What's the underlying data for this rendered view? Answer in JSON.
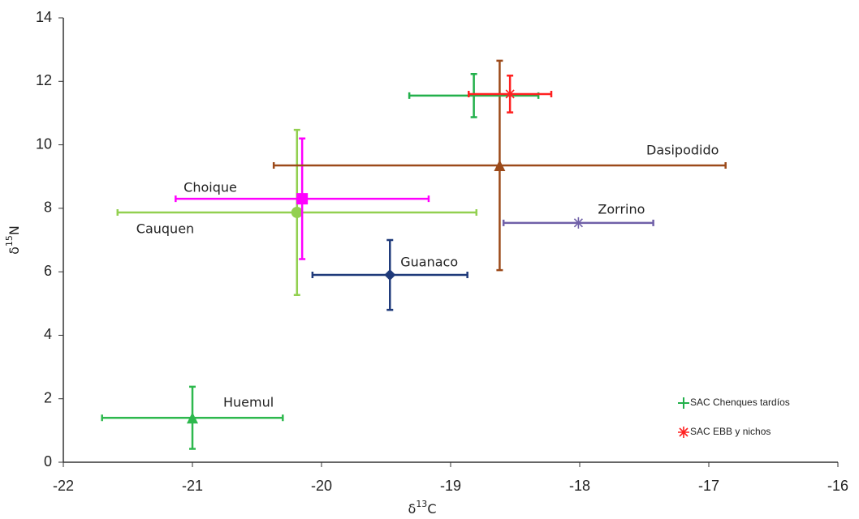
{
  "chart_data": {
    "type": "scatter",
    "x_label": {
      "symbol": "δ",
      "sup": "13",
      "element": "C"
    },
    "y_label": {
      "symbol": "δ",
      "sup": "15",
      "element": "N"
    },
    "xlim": [
      -22,
      -16
    ],
    "xticks": [
      -22,
      -21,
      -20,
      -19,
      -18,
      -17,
      -16
    ],
    "ylim": [
      0,
      14
    ],
    "yticks": [
      0,
      2,
      4,
      6,
      8,
      10,
      12,
      14
    ],
    "series": [
      {
        "name": "Huemul",
        "legend": false,
        "marker": "triangle",
        "color": "#2db84d",
        "x": -21.0,
        "y": 1.4,
        "xerr": 0.7,
        "yerr": 0.98
      },
      {
        "name": "Cauquen",
        "legend": false,
        "marker": "circle",
        "color": "#92d050",
        "x": -20.19,
        "y": 7.87,
        "xerr": 1.39,
        "yerr": 2.6
      },
      {
        "name": "Choique",
        "legend": false,
        "marker": "square",
        "color": "#ff00ff",
        "x": -20.15,
        "y": 8.3,
        "xerr": 0.98,
        "yerr": 1.9
      },
      {
        "name": "Guanaco",
        "legend": false,
        "marker": "diamond",
        "color": "#1f3a7a",
        "x": -19.47,
        "y": 5.9,
        "xerr": 0.6,
        "yerr": 1.1
      },
      {
        "name": "Dasipodido",
        "legend": false,
        "marker": "triangle",
        "color": "#9c4a1a",
        "x": -18.62,
        "y": 9.35,
        "xerr": 1.75,
        "yerr": 3.3
      },
      {
        "name": "Zorrino",
        "legend": false,
        "marker": "asterisk",
        "color": "#7060a8",
        "x": -18.01,
        "y": 7.54,
        "xerr": 0.58,
        "yerr": 0
      },
      {
        "name": "SAC Chenques tardíos",
        "legend": true,
        "marker": "plus",
        "color": "#22b04b",
        "x": -18.82,
        "y": 11.55,
        "xerr": 0.5,
        "yerr": 0.68
      },
      {
        "name": "SAC EBB y nichos",
        "legend": true,
        "marker": "asterisk",
        "color": "#ff2020",
        "x": -18.54,
        "y": 11.6,
        "xerr": 0.32,
        "yerr": 0.58
      }
    ]
  }
}
